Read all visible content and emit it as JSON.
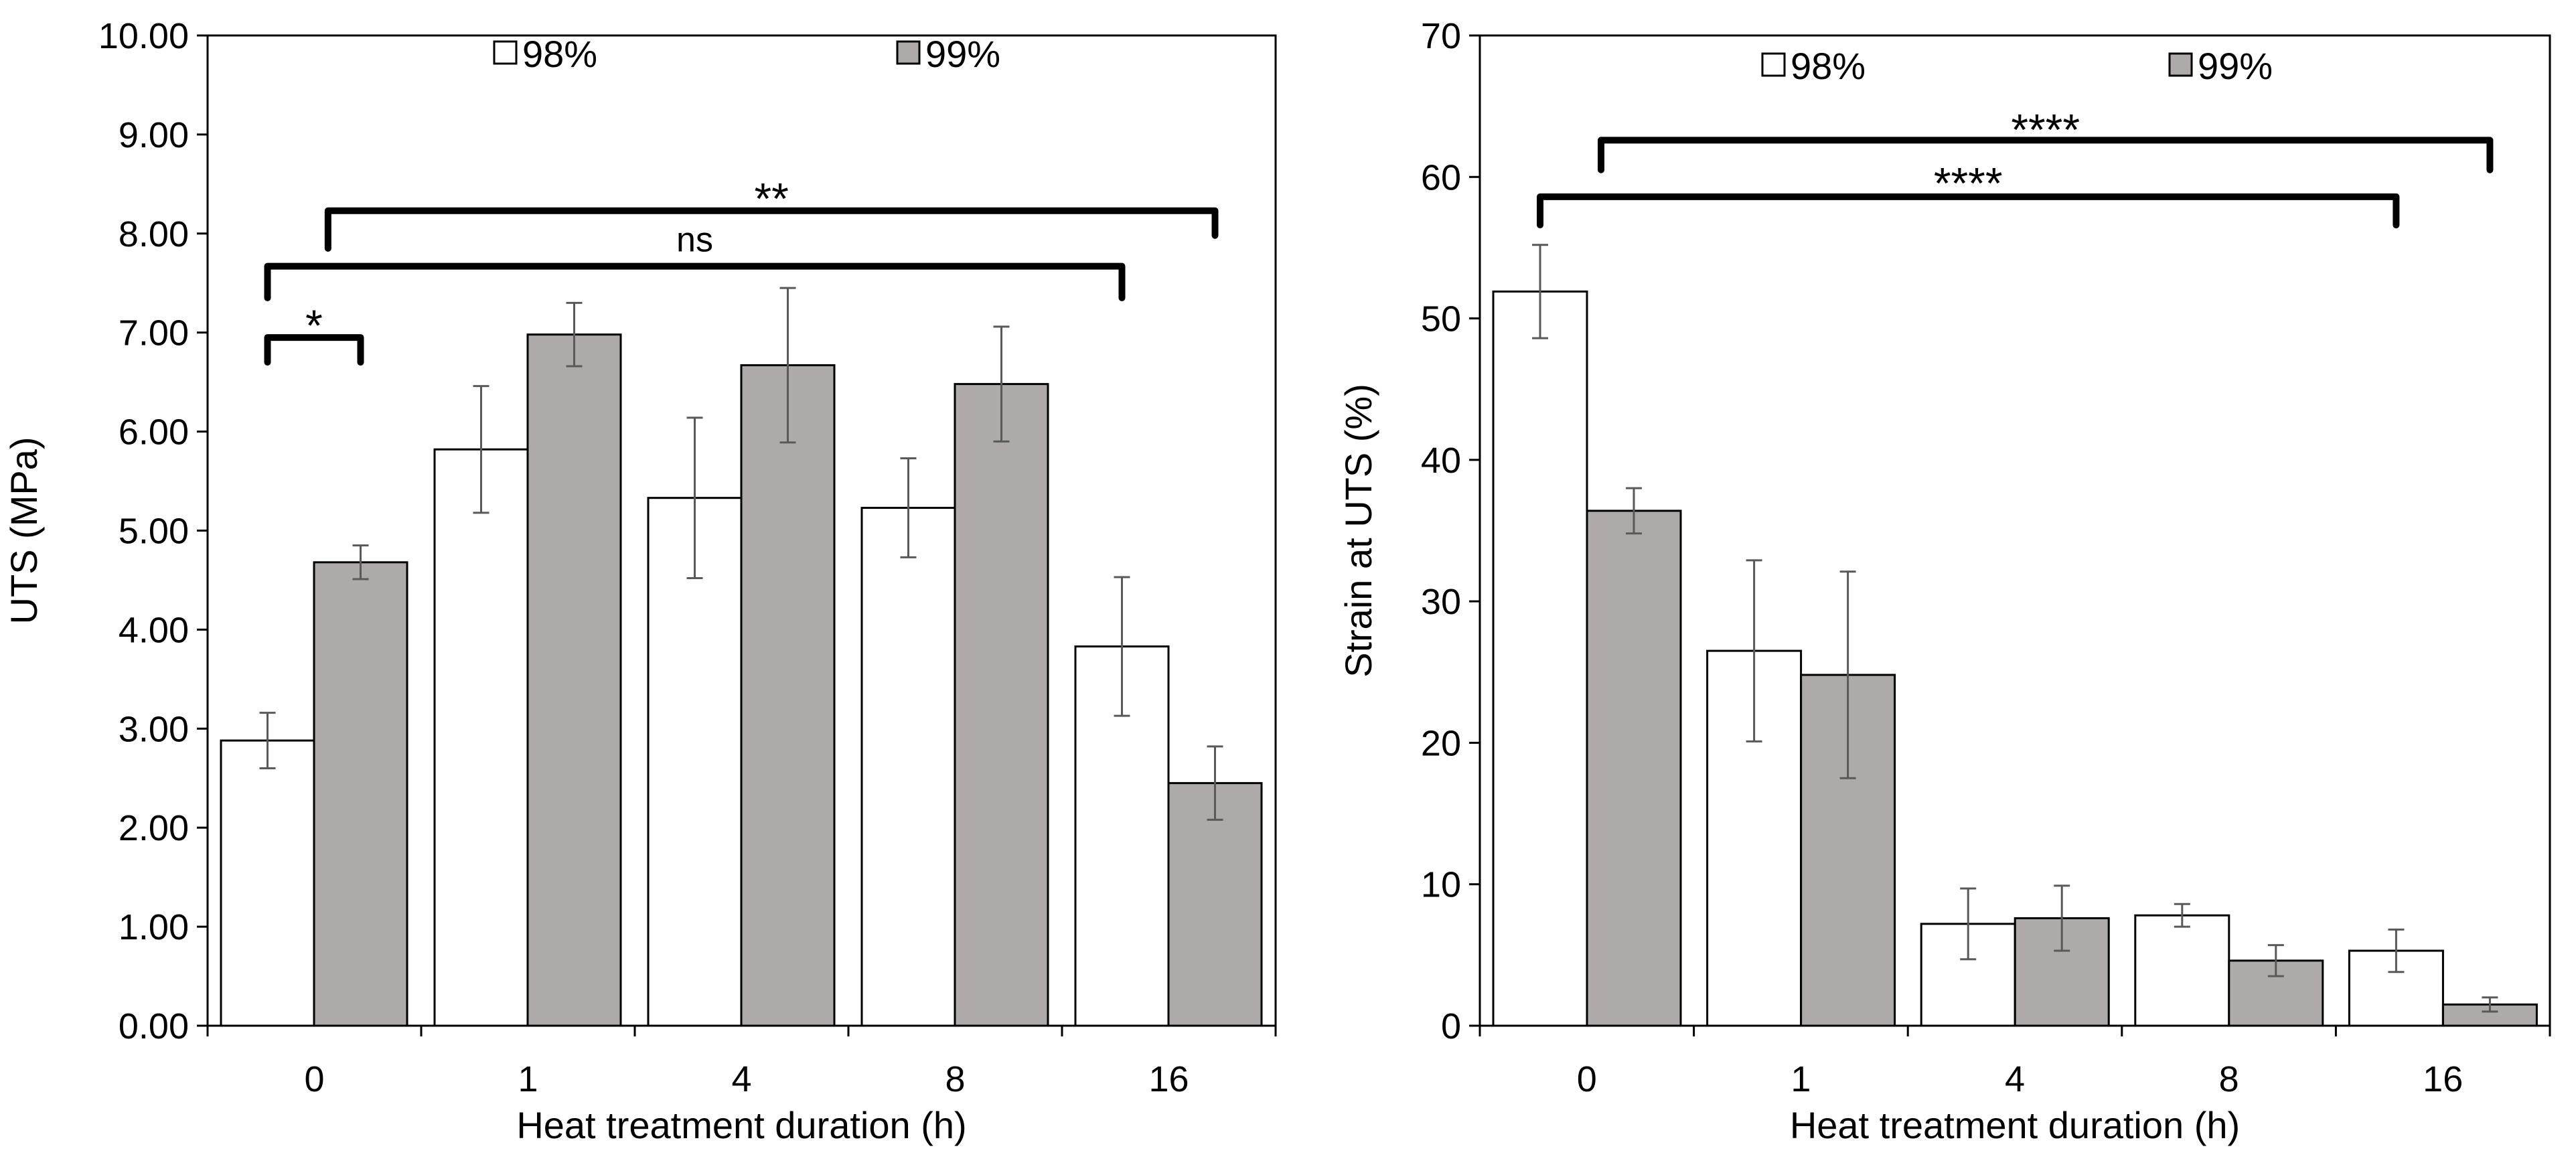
{
  "chart_data": [
    {
      "type": "bar",
      "xlabel": "Heat treatment duration (h)",
      "ylabel": "UTS (MPa)",
      "ylim": [
        0,
        10
      ],
      "yticks": [
        "0.00",
        "1.00",
        "2.00",
        "3.00",
        "4.00",
        "5.00",
        "6.00",
        "7.00",
        "8.00",
        "9.00",
        "10.00"
      ],
      "categories": [
        "0",
        "1",
        "4",
        "8",
        "16"
      ],
      "series": [
        {
          "name": "98%",
          "color": "#ffffff",
          "values": [
            2.88,
            5.82,
            5.33,
            5.23,
            3.83
          ],
          "errors": [
            0.28,
            0.64,
            0.81,
            0.5,
            0.7
          ]
        },
        {
          "name": "99%",
          "color": "#aeaaaa",
          "values": [
            4.68,
            6.98,
            6.67,
            6.48,
            2.45
          ],
          "errors": [
            0.17,
            0.32,
            0.78,
            0.58,
            0.37
          ]
        }
      ],
      "legend_position": "top",
      "annotations": [
        {
          "label": "*",
          "from": [
            "0",
            "98%"
          ],
          "to": [
            "0",
            "99%"
          ],
          "y": 6.95,
          "drop_from": 6.7,
          "drop_to": 6.7,
          "label_y": 7.08
        },
        {
          "label": "ns",
          "from": [
            "0",
            "98%"
          ],
          "to": [
            "16",
            "98%"
          ],
          "y": 7.67,
          "drop_from": 7.35,
          "drop_to": 7.35,
          "label_y": 7.82
        },
        {
          "label": "**",
          "from": [
            "0",
            "99%"
          ],
          "to": [
            "16",
            "99%"
          ],
          "y": 8.23,
          "drop_from": 7.85,
          "drop_to": 7.98,
          "label_y": 8.36
        }
      ]
    },
    {
      "type": "bar",
      "xlabel": "Heat treatment duration (h)",
      "ylabel": "Strain at UTS (%)",
      "ylim": [
        0,
        70
      ],
      "yticks": [
        "0",
        "10",
        "20",
        "30",
        "40",
        "50",
        "60",
        "70"
      ],
      "categories": [
        "0",
        "1",
        "4",
        "8",
        "16"
      ],
      "series": [
        {
          "name": "98%",
          "color": "#ffffff",
          "values": [
            51.9,
            26.5,
            7.2,
            7.8,
            5.3
          ],
          "errors": [
            3.3,
            6.4,
            2.5,
            0.8,
            1.5
          ]
        },
        {
          "name": "99%",
          "color": "#aeaaaa",
          "values": [
            36.4,
            24.8,
            7.6,
            4.6,
            1.5
          ],
          "errors": [
            1.6,
            7.3,
            2.3,
            1.1,
            0.5
          ]
        }
      ],
      "legend_position": "top",
      "annotations": [
        {
          "label": "****",
          "from": [
            "0",
            "98%"
          ],
          "to": [
            "16",
            "98%"
          ],
          "y": 58.6,
          "drop_from": 56.6,
          "drop_to": 56.6,
          "label_y": 59.6
        },
        {
          "label": "****",
          "from": [
            "0",
            "99%"
          ],
          "to": [
            "16",
            "99%"
          ],
          "y": 62.6,
          "drop_from": 60.5,
          "drop_to": 60.5,
          "label_y": 63.4
        }
      ]
    }
  ],
  "colors": {
    "axis": "#000000",
    "error_bar": "#595959",
    "bar_edge": "#000000"
  }
}
